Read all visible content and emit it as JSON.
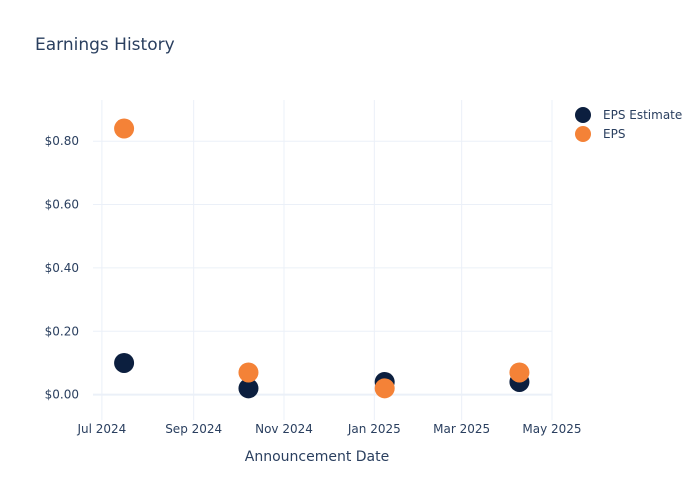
{
  "chart_data": {
    "type": "scatter",
    "title": "Earnings History",
    "xlabel": "Announcement Date",
    "ylabel": "",
    "x_ticks": [
      "Jul 2024",
      "Sep 2024",
      "Nov 2024",
      "Jan 2025",
      "Mar 2025",
      "May 2025"
    ],
    "x_tick_dates": [
      "2024-07-01",
      "2024-09-01",
      "2024-11-01",
      "2025-01-01",
      "2025-03-01",
      "2025-05-01"
    ],
    "xlim": [
      "2024-06-25",
      "2025-05-01"
    ],
    "y_ticks": [
      "$0.00",
      "$0.20",
      "$0.40",
      "$0.60",
      "$0.80"
    ],
    "y_tick_values": [
      0,
      0.2,
      0.4,
      0.6,
      0.8
    ],
    "ylim": [
      -0.08,
      0.93
    ],
    "grid": true,
    "legend_position": "top-right",
    "series": [
      {
        "name": "EPS Estimate",
        "color": "#0c1f3f",
        "points": [
          {
            "x": "2024-07-16",
            "y": 0.1
          },
          {
            "x": "2024-10-08",
            "y": 0.02
          },
          {
            "x": "2025-01-08",
            "y": 0.04
          },
          {
            "x": "2025-04-09",
            "y": 0.04
          }
        ]
      },
      {
        "name": "EPS",
        "color": "#f48237",
        "points": [
          {
            "x": "2024-07-16",
            "y": 0.84
          },
          {
            "x": "2024-10-08",
            "y": 0.07
          },
          {
            "x": "2025-01-08",
            "y": 0.02
          },
          {
            "x": "2025-04-09",
            "y": 0.07
          }
        ]
      }
    ]
  }
}
